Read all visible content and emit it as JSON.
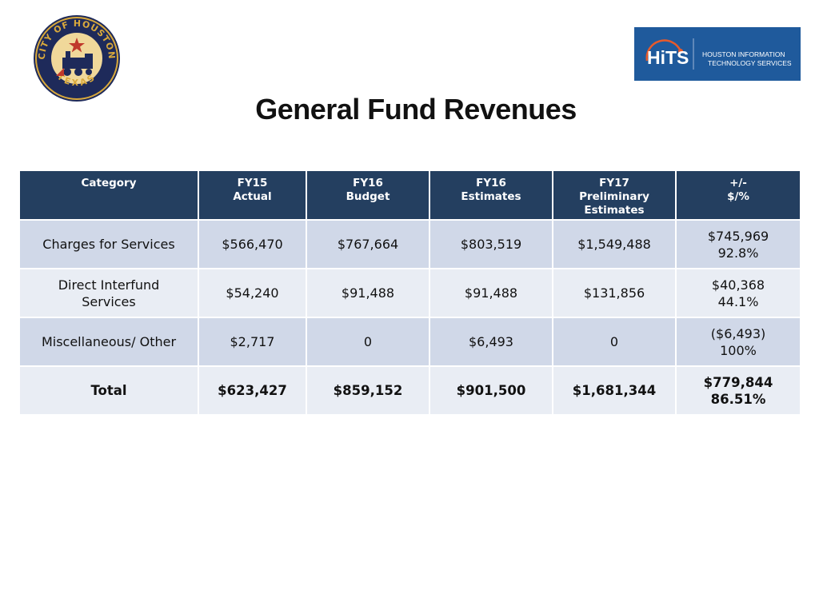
{
  "title": "General Fund Revenues",
  "logos": {
    "seal_text": [
      "CITY OF HOUSTON",
      "TEXAS"
    ],
    "hits_wordmark": "HiTS",
    "hits_name": [
      "HOUSTON INFORMATION",
      "TECHNOLOGY SERVICES"
    ]
  },
  "colors": {
    "header_bg": "#243f60",
    "row_dark": "#d0d8e8",
    "row_light": "#e9edf4",
    "hits_bg": "#1f5a9c",
    "hits_accent": "#e85a2a"
  },
  "table": {
    "headers": [
      "Category",
      "FY15\nActual",
      "FY16\nBudget",
      "FY16\nEstimates",
      "FY17\nPreliminary\nEstimates",
      "+/-\n$/%"
    ],
    "rows": [
      [
        "Charges for Services",
        "$566,470",
        "$767,664",
        "$803,519",
        "$1,549,488",
        "$745,969\n92.8%"
      ],
      [
        "Direct Interfund\nServices",
        "$54,240",
        "$91,488",
        "$91,488",
        "$131,856",
        "$40,368\n44.1%"
      ],
      [
        "Miscellaneous/ Other",
        "$2,717",
        "0",
        "$6,493",
        "0",
        "($6,493)\n100%"
      ],
      [
        "Total",
        "$623,427",
        "$859,152",
        "$901,500",
        "$1,681,344",
        "$779,844\n86.51%"
      ]
    ]
  }
}
